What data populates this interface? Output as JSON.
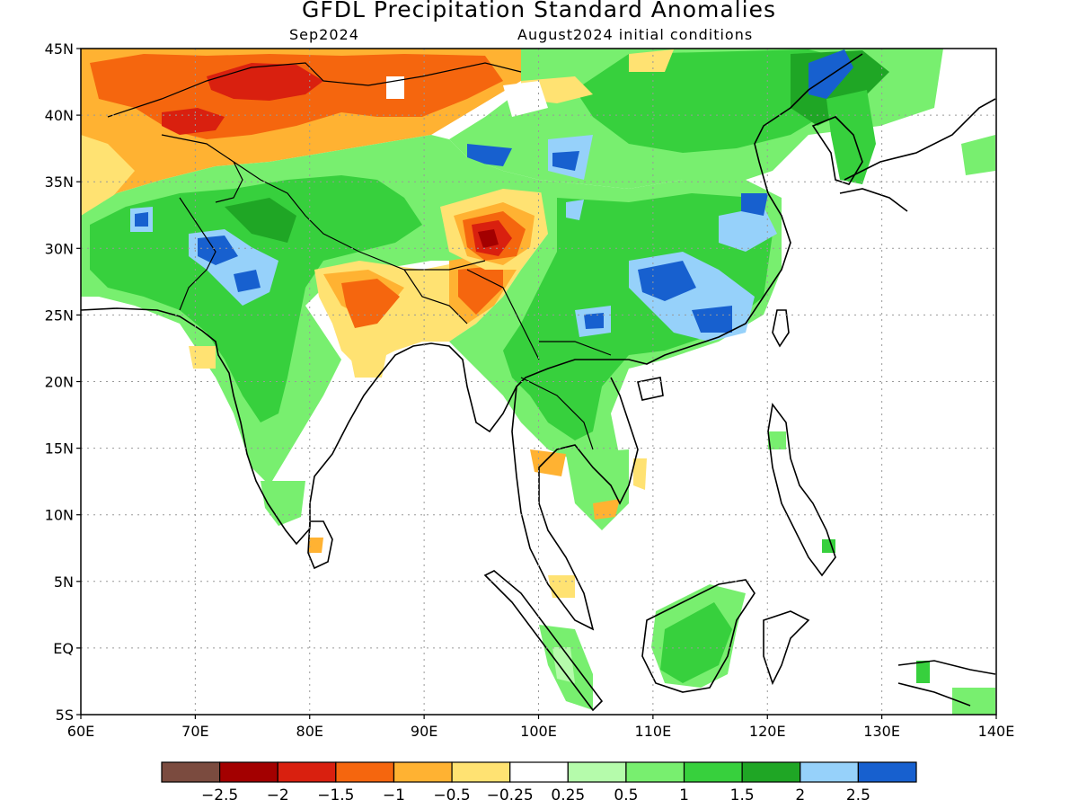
{
  "map": {
    "title": "GFDL Precipitation Standard Anomalies",
    "forecast_month": "Sep2024",
    "initial_conditions": "August2024 initial conditions",
    "lat_ticks": [
      "45N",
      "40N",
      "35N",
      "30N",
      "25N",
      "20N",
      "15N",
      "10N",
      "5N",
      "EQ",
      "5S"
    ],
    "lon_ticks": [
      "60E",
      "70E",
      "80E",
      "90E",
      "100E",
      "110E",
      "120E",
      "130E",
      "140E"
    ],
    "extent": {
      "lon": [
        60,
        140
      ],
      "lat": [
        -5,
        45
      ]
    },
    "grid": "dotted",
    "legend_placement": "bottom",
    "legend": {
      "colors": [
        "#7b4b3f",
        "#a30000",
        "#d9200f",
        "#f5660e",
        "#ffb232",
        "#ffe272",
        "#ffffff",
        "#b5fbab",
        "#78ef6f",
        "#37d03d",
        "#1fa625",
        "#96d1fa",
        "#1760cf"
      ],
      "labels": [
        "-2.5",
        "-2",
        "-1.5",
        "-1",
        "-0.5",
        "-0.25",
        "0.25",
        "0.5",
        "1",
        "1.5",
        "2",
        "2.5"
      ]
    },
    "land_color": "#ffffff",
    "line_color": "#000000"
  }
}
